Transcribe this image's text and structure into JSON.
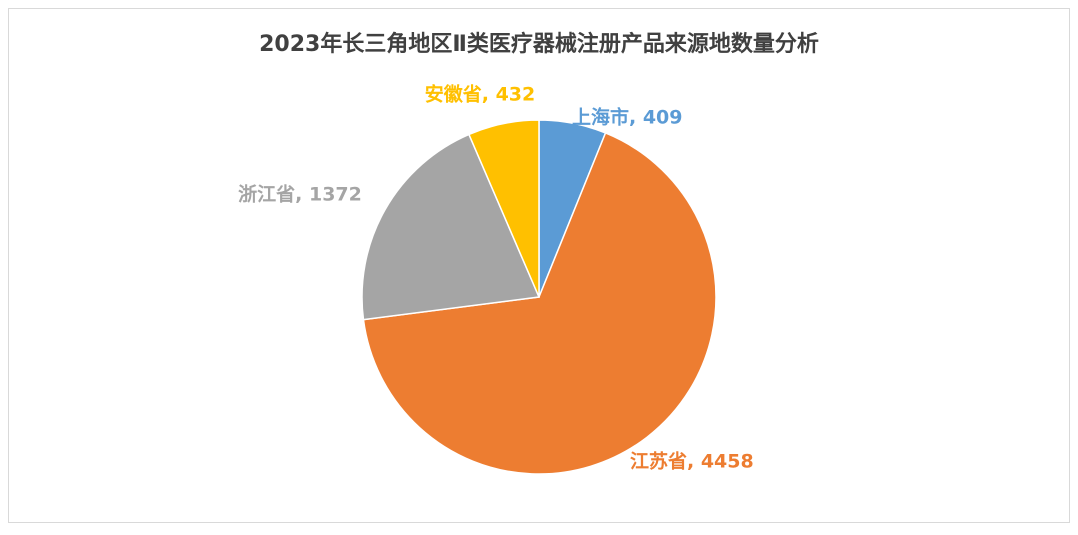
{
  "chart_data": {
    "type": "pie",
    "title": "2023年长三角地区Ⅱ类医疗器械注册产品来源地数量分析",
    "values": [
      409,
      4458,
      1372,
      432
    ],
    "value_labels": [
      "上海市, 409",
      "江苏省, 4458",
      "浙江省, 1372",
      "安徽省, 432"
    ],
    "colors": [
      "#5b9bd5",
      "#ed7d31",
      "#a5a5a5",
      "#ffc000"
    ]
  }
}
